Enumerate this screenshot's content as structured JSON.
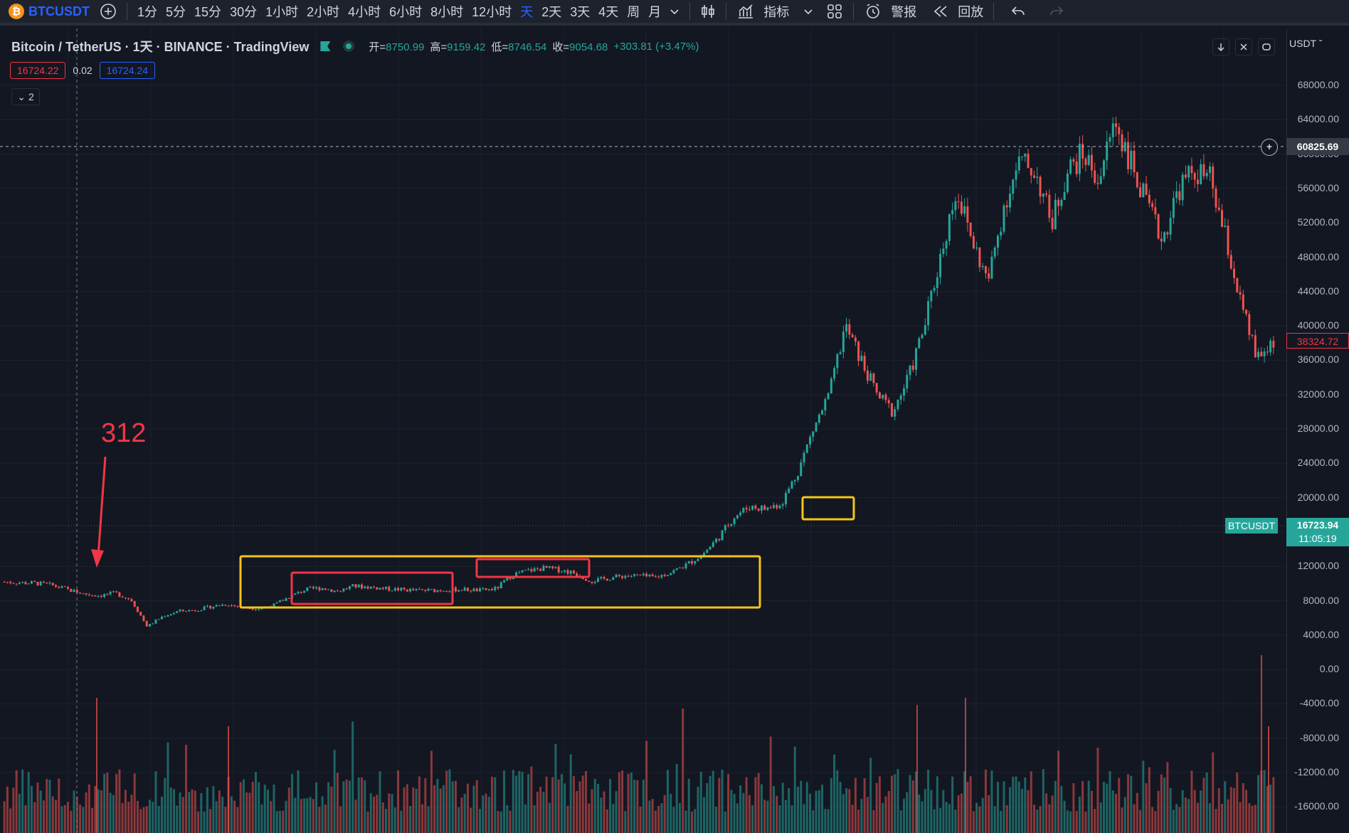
{
  "toolbar": {
    "symbol": "BTCUSDT",
    "coin_glyph": "₿",
    "intervals": [
      "1分",
      "5分",
      "15分",
      "30分",
      "1小时",
      "2小时",
      "4小时",
      "6小时",
      "8小时",
      "12小时",
      "天",
      "2天",
      "3天",
      "4天",
      "周",
      "月"
    ],
    "active_interval": "天",
    "indicators_label": "指标",
    "alerts_label": "警报",
    "replay_label": "回放",
    "icons": [
      "add-symbol-icon",
      "chevron-down-icon",
      "candle-style-icon",
      "indicators-icon",
      "layout-icon",
      "alarm-icon",
      "replay-icon",
      "undo-icon",
      "redo-icon"
    ]
  },
  "legend": {
    "title": "Bitcoin / TetherUS · 1天 · BINANCE · TradingView",
    "open_label": "开=",
    "open": "8750.99",
    "high_label": "高=",
    "high": "9159.42",
    "low_label": "低=",
    "low": "8746.54",
    "close_label": "收=",
    "close": "9054.68",
    "change": "+303.81 (+3.47%)"
  },
  "quote": {
    "bid": "16724.22",
    "spread": "0.02",
    "ask": "16724.24"
  },
  "indicators_collapse": {
    "label": "2"
  },
  "price_axis": {
    "currency": "USDT",
    "labels": [
      "68000.00",
      "64000.00",
      "60000.00",
      "56000.00",
      "52000.00",
      "48000.00",
      "44000.00",
      "40000.00",
      "36000.00",
      "32000.00",
      "28000.00",
      "24000.00",
      "20000.00",
      "16000.00",
      "12000.00",
      "8000.00",
      "4000.00",
      "0.00",
      "-4000.00",
      "-8000.00",
      "-12000.00",
      "-16000.00"
    ],
    "crosshair_price": "60825.69",
    "last_red_tag": "38324.72",
    "symbol_tag": "BTCUSDT",
    "current_price": "16723.94",
    "countdown": "11:05:19"
  },
  "annotation": {
    "text": "312"
  },
  "colors": {
    "background": "#131722",
    "up": "#26a69a",
    "down": "#ef5350",
    "accent": "#2962ff",
    "box_yellow": "#f5c518",
    "box_red": "#f23645"
  },
  "chart_data": {
    "type": "candlestick",
    "title": "Bitcoin / TetherUS · 1天 · BINANCE",
    "ylabel": "",
    "ylim": [
      -18000,
      70000
    ],
    "series": [
      {
        "name": "",
        "values": [
          10200,
          10100,
          10050,
          9800,
          9300,
          8800,
          8600,
          8900,
          8100,
          5000,
          6200,
          6800,
          6900,
          7300,
          7600,
          7200,
          7100,
          7500,
          8500,
          9300,
          9500,
          9100,
          9700,
          9600,
          9400,
          9300,
          9200,
          9200,
          9300,
          9300,
          9200,
          9400,
          11000,
          11500,
          11800,
          11600,
          11200,
          10300,
          10600,
          10900,
          10900,
          10700,
          11300,
          12200,
          13400,
          15300,
          17800,
          19000,
          18700,
          19400,
          23000,
          28000,
          32000,
          40000,
          36000,
          32000,
          30000,
          34000,
          40000,
          48000,
          56000,
          50000,
          45000,
          54000,
          59000,
          58000,
          52000,
          58000,
          60000,
          57000,
          64000,
          59000,
          54000,
          50000,
          56000,
          58000,
          57000,
          50000,
          42000,
          36000,
          38300
        ]
      }
    ]
  }
}
